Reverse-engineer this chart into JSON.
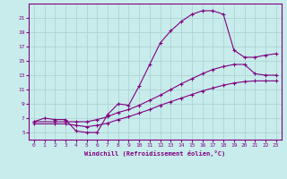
{
  "xlabel": "Windchill (Refroidissement éolien,°C)",
  "background_color": "#c8ecec",
  "grid_color": "#aed4d4",
  "line_color": "#800080",
  "xlim": [
    -0.5,
    23.5
  ],
  "ylim": [
    4,
    23
  ],
  "xticks": [
    0,
    1,
    2,
    3,
    4,
    5,
    6,
    7,
    8,
    9,
    10,
    11,
    12,
    13,
    14,
    15,
    16,
    17,
    18,
    19,
    20,
    21,
    22,
    23
  ],
  "yticks": [
    5,
    7,
    9,
    11,
    13,
    15,
    17,
    19,
    21
  ],
  "curve1_x": [
    0,
    1,
    2,
    3,
    4,
    5,
    6,
    7,
    8,
    9,
    10,
    11,
    12,
    13,
    14,
    15,
    16,
    17,
    18,
    19,
    20,
    21,
    22,
    23
  ],
  "curve1_y": [
    6.5,
    7.0,
    6.8,
    6.8,
    5.2,
    5.0,
    5.0,
    7.5,
    9.0,
    8.8,
    11.5,
    14.5,
    17.5,
    19.2,
    20.5,
    21.5,
    22.0,
    22.0,
    21.5,
    16.5,
    15.5,
    15.5,
    15.8,
    16.0
  ],
  "curve2_x": [
    0,
    2,
    3,
    4,
    5,
    6,
    7,
    8,
    9,
    10,
    11,
    12,
    13,
    14,
    15,
    16,
    17,
    18,
    19,
    20,
    21,
    22,
    23
  ],
  "curve2_y": [
    6.5,
    6.5,
    6.5,
    6.5,
    6.5,
    6.8,
    7.2,
    7.8,
    8.2,
    8.8,
    9.5,
    10.2,
    11.0,
    11.8,
    12.5,
    13.2,
    13.8,
    14.2,
    14.5,
    14.5,
    13.2,
    13.0,
    13.0
  ],
  "curve3_x": [
    0,
    2,
    3,
    4,
    5,
    6,
    7,
    8,
    9,
    10,
    11,
    12,
    13,
    14,
    15,
    16,
    17,
    18,
    19,
    20,
    21,
    22,
    23
  ],
  "curve3_y": [
    6.2,
    6.2,
    6.2,
    6.0,
    5.8,
    6.0,
    6.3,
    6.8,
    7.2,
    7.7,
    8.2,
    8.8,
    9.3,
    9.8,
    10.3,
    10.8,
    11.2,
    11.6,
    11.9,
    12.1,
    12.2,
    12.2,
    12.2
  ]
}
